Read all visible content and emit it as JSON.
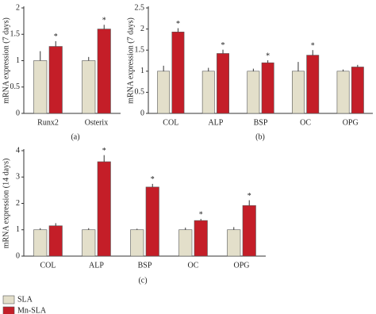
{
  "chart_data": [
    {
      "type": "bar",
      "panel_label": "(a)",
      "ylabel": "mRNA expression (7 days)",
      "categories": [
        "Runx2",
        "Osterix"
      ],
      "series": [
        {
          "name": "SLA",
          "color": "#e3dfca",
          "values": [
            1.0,
            1.0
          ],
          "errors": [
            0.18,
            0.07
          ]
        },
        {
          "name": "Mn-SLA",
          "color": "#c41e28",
          "values": [
            1.27,
            1.6
          ],
          "errors": [
            0.1,
            0.08
          ],
          "significance": [
            "*",
            "*"
          ]
        }
      ],
      "ylim": [
        0,
        2
      ],
      "yticks": [
        0,
        0.5,
        1,
        1.5,
        2
      ]
    },
    {
      "type": "bar",
      "panel_label": "(b)",
      "ylabel": "mRNA expression (7 days)",
      "categories": [
        "COL",
        "ALP",
        "BSP",
        "OC",
        "OPG"
      ],
      "series": [
        {
          "name": "SLA",
          "color": "#e3dfca",
          "values": [
            1.0,
            1.0,
            1.0,
            1.0,
            1.0
          ],
          "errors": [
            0.13,
            0.08,
            0.06,
            0.22,
            0.04
          ]
        },
        {
          "name": "Mn-SLA",
          "color": "#c41e28",
          "values": [
            1.93,
            1.42,
            1.2,
            1.38,
            1.1
          ],
          "errors": [
            0.09,
            0.09,
            0.06,
            0.12,
            0.05
          ],
          "significance": [
            "*",
            "*",
            "*",
            "*",
            null
          ]
        }
      ],
      "ylim": [
        0,
        2.5
      ],
      "yticks": [
        0,
        0.5,
        1,
        1.5,
        2,
        2.5
      ]
    },
    {
      "type": "bar",
      "panel_label": "(c)",
      "ylabel": "mRNA expression (14 days)",
      "categories": [
        "COL",
        "ALP",
        "BSP",
        "OC",
        "OPG"
      ],
      "series": [
        {
          "name": "SLA",
          "color": "#e3dfca",
          "values": [
            1.0,
            1.0,
            1.0,
            1.0,
            1.0
          ],
          "errors": [
            0.06,
            0.06,
            0.04,
            0.08,
            0.1
          ]
        },
        {
          "name": "Mn-SLA",
          "color": "#c41e28",
          "values": [
            1.15,
            3.58,
            2.62,
            1.35,
            1.92
          ],
          "errors": [
            0.1,
            0.25,
            0.12,
            0.06,
            0.2
          ],
          "significance": [
            null,
            "*",
            "*",
            "*",
            "*"
          ]
        }
      ],
      "ylim": [
        0,
        4
      ],
      "yticks": [
        0,
        1,
        2,
        3,
        4
      ]
    }
  ]
}
